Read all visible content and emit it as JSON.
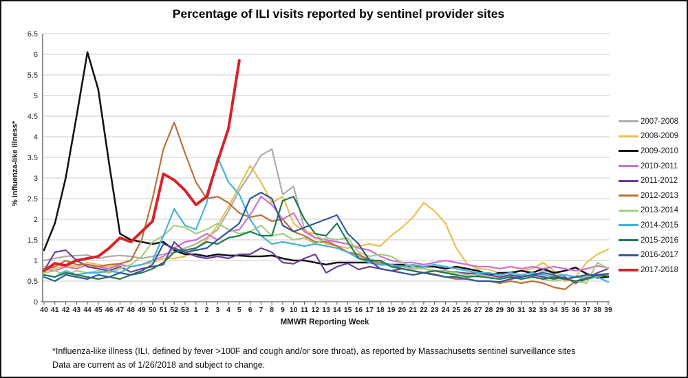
{
  "footnote": {
    "line1": "*Influenza-like illness (ILI, defined by fever >100F and cough and/or sore throat), as reported by Massachusetts sentinel surveillance sites",
    "line2": "Data are current as of 1/26/2018 and subject to change."
  },
  "chart_data": {
    "type": "line",
    "title": "Percentage of ILI visits reported by sentinel provider sites",
    "xlabel": "MMWR Reporting Week",
    "ylabel": "% Influenza-like Illness*",
    "ylim": [
      0,
      6.5
    ],
    "ytick_step": 0.5,
    "grid": true,
    "legend_position": "right",
    "axis_color": "#595959",
    "grid_color": "#c9c9c9",
    "categories": [
      "40",
      "41",
      "42",
      "43",
      "44",
      "45",
      "46",
      "47",
      "48",
      "49",
      "50",
      "51",
      "52",
      "53",
      "1",
      "2",
      "3",
      "4",
      "5",
      "6",
      "7",
      "8",
      "9",
      "10",
      "11",
      "12",
      "13",
      "14",
      "15",
      "16",
      "17",
      "18",
      "19",
      "20",
      "21",
      "22",
      "23",
      "24",
      "25",
      "26",
      "27",
      "28",
      "29",
      "30",
      "31",
      "32",
      "33",
      "34",
      "35",
      "36",
      "37",
      "38",
      "39"
    ],
    "series": [
      {
        "name": "2007-2008",
        "color": "#ababab",
        "stroke_width": 2.2,
        "values": [
          1.0,
          1.05,
          1.1,
          1.12,
          1.13,
          1.05,
          1.1,
          1.12,
          1.1,
          1.05,
          1.1,
          1.15,
          1.2,
          1.3,
          1.4,
          1.55,
          1.75,
          2.2,
          2.7,
          3.1,
          3.55,
          3.7,
          2.6,
          2.8,
          1.75,
          1.55,
          1.5,
          1.35,
          1.2,
          1.1,
          1.05,
          0.95,
          0.9,
          0.85,
          0.8,
          0.8,
          0.75,
          0.75,
          0.7,
          0.7,
          0.65,
          0.65,
          0.6,
          0.6,
          0.65,
          0.6,
          0.75,
          0.7,
          0.65,
          0.6,
          0.6,
          0.65,
          0.65
        ]
      },
      {
        "name": "2008-2009",
        "color": "#eabf4c",
        "stroke_width": 2.2,
        "values": [
          0.85,
          0.8,
          0.9,
          0.85,
          0.95,
          0.9,
          0.85,
          0.9,
          0.85,
          0.9,
          0.95,
          1.05,
          1.05,
          1.1,
          1.3,
          1.5,
          1.85,
          2.3,
          2.8,
          3.3,
          2.9,
          2.4,
          2.55,
          1.9,
          1.7,
          1.65,
          1.4,
          1.35,
          1.3,
          1.35,
          1.4,
          1.35,
          1.6,
          1.8,
          2.05,
          2.4,
          2.2,
          1.9,
          1.3,
          0.92,
          0.8,
          0.78,
          0.7,
          0.72,
          0.75,
          0.8,
          0.95,
          0.75,
          0.5,
          0.6,
          0.95,
          1.15,
          1.27
        ]
      },
      {
        "name": "2009-2010",
        "color": "#141414",
        "stroke_width": 2.6,
        "values": [
          1.25,
          1.9,
          3.0,
          4.5,
          6.05,
          5.15,
          3.35,
          1.65,
          1.5,
          1.45,
          1.4,
          1.45,
          1.25,
          1.15,
          1.15,
          1.1,
          1.15,
          1.12,
          1.12,
          1.1,
          1.1,
          1.12,
          1.05,
          1.0,
          1.0,
          0.95,
          0.9,
          0.95,
          0.95,
          0.95,
          0.95,
          0.9,
          0.9,
          0.9,
          0.85,
          0.85,
          0.85,
          0.8,
          0.85,
          0.8,
          0.75,
          0.65,
          0.7,
          0.7,
          0.75,
          0.7,
          0.8,
          0.7,
          0.75,
          0.83,
          0.68,
          0.58,
          0.6
        ]
      },
      {
        "name": "2010-2011",
        "color": "#cf6fd0",
        "stroke_width": 2.2,
        "values": [
          0.8,
          0.75,
          0.85,
          0.8,
          0.9,
          0.85,
          0.8,
          0.9,
          0.85,
          0.9,
          1.0,
          1.1,
          1.3,
          1.45,
          1.5,
          1.65,
          1.5,
          1.7,
          1.75,
          2.1,
          2.55,
          2.35,
          2.0,
          2.15,
          1.7,
          1.55,
          1.5,
          1.45,
          1.4,
          1.3,
          1.25,
          1.1,
          1.0,
          0.95,
          0.95,
          0.9,
          0.95,
          1.0,
          0.95,
          0.9,
          0.85,
          0.85,
          0.8,
          0.85,
          0.8,
          0.85,
          0.8,
          0.85,
          0.8,
          0.75,
          0.8,
          0.87,
          0.82
        ]
      },
      {
        "name": "2011-2012",
        "color": "#6b3e98",
        "stroke_width": 2.2,
        "values": [
          0.75,
          1.2,
          1.25,
          1.0,
          0.85,
          0.8,
          0.75,
          0.85,
          0.72,
          0.8,
          0.85,
          0.9,
          1.45,
          1.2,
          1.1,
          1.05,
          1.1,
          1.05,
          1.15,
          1.15,
          1.3,
          1.2,
          0.95,
          0.92,
          1.05,
          1.15,
          0.7,
          0.85,
          0.93,
          0.78,
          0.85,
          0.8,
          0.75,
          0.8,
          0.75,
          0.7,
          0.75,
          0.7,
          0.72,
          0.68,
          0.7,
          0.65,
          0.6,
          0.65,
          0.6,
          0.65,
          0.6,
          0.55,
          0.6,
          0.45,
          0.55,
          0.7,
          0.8
        ]
      },
      {
        "name": "2012-2013",
        "color": "#bd7036",
        "stroke_width": 2.2,
        "values": [
          0.8,
          0.85,
          1.0,
          0.9,
          0.9,
          0.85,
          0.9,
          0.92,
          1.0,
          1.5,
          2.5,
          3.7,
          4.35,
          3.6,
          2.9,
          2.5,
          2.55,
          2.4,
          2.15,
          2.05,
          2.1,
          1.95,
          2.0,
          1.7,
          1.6,
          1.45,
          1.45,
          1.35,
          1.2,
          1.15,
          1.0,
          0.95,
          0.9,
          0.8,
          0.75,
          0.7,
          0.67,
          0.6,
          0.55,
          0.55,
          0.5,
          0.5,
          0.45,
          0.5,
          0.45,
          0.5,
          0.45,
          0.35,
          0.3,
          0.5,
          0.58,
          0.62,
          0.68
        ]
      },
      {
        "name": "2013-2014",
        "color": "#a5cf7c",
        "stroke_width": 2.2,
        "values": [
          0.7,
          0.75,
          0.65,
          0.75,
          0.7,
          0.75,
          0.7,
          0.8,
          0.9,
          1.1,
          1.45,
          1.6,
          1.85,
          1.8,
          1.65,
          1.75,
          1.9,
          1.75,
          1.65,
          1.7,
          1.85,
          1.6,
          1.65,
          1.5,
          1.55,
          1.4,
          1.55,
          1.5,
          1.55,
          1.2,
          1.1,
          1.15,
          1.1,
          0.95,
          0.85,
          0.8,
          0.75,
          0.7,
          0.7,
          0.65,
          0.6,
          0.6,
          0.55,
          0.6,
          0.55,
          0.6,
          0.55,
          0.5,
          0.55,
          0.5,
          0.45,
          0.95,
          0.8
        ]
      },
      {
        "name": "2014-2015",
        "color": "#41b4d8",
        "stroke_width": 2.2,
        "values": [
          0.65,
          0.6,
          0.75,
          0.65,
          0.7,
          0.7,
          0.75,
          0.7,
          0.85,
          0.9,
          1.0,
          1.6,
          2.25,
          1.85,
          1.75,
          2.4,
          3.5,
          2.9,
          2.6,
          2.0,
          1.6,
          1.4,
          1.45,
          1.4,
          1.35,
          1.4,
          1.35,
          1.3,
          1.2,
          1.05,
          0.95,
          0.9,
          0.9,
          0.85,
          0.9,
          0.85,
          0.9,
          0.85,
          0.8,
          0.75,
          0.7,
          0.7,
          0.65,
          0.7,
          0.65,
          0.7,
          0.65,
          0.6,
          0.65,
          0.6,
          0.55,
          0.6,
          0.48
        ]
      },
      {
        "name": "2015-2016",
        "color": "#1f7a4d",
        "stroke_width": 2.2,
        "values": [
          0.65,
          0.6,
          0.7,
          0.65,
          0.6,
          0.55,
          0.6,
          0.55,
          0.65,
          0.7,
          0.8,
          0.95,
          1.2,
          1.25,
          1.3,
          1.45,
          1.4,
          1.55,
          1.6,
          1.7,
          1.6,
          1.6,
          2.45,
          2.55,
          2.0,
          1.65,
          1.6,
          1.9,
          1.45,
          1.05,
          1.0,
          1.0,
          0.85,
          0.8,
          0.75,
          0.7,
          0.75,
          0.7,
          0.65,
          0.6,
          0.62,
          0.58,
          0.55,
          0.6,
          0.55,
          0.6,
          0.55,
          0.6,
          0.55,
          0.5,
          0.55,
          0.65,
          0.62
        ]
      },
      {
        "name": "2016-2017",
        "color": "#30589c",
        "stroke_width": 2.2,
        "values": [
          0.6,
          0.5,
          0.65,
          0.6,
          0.55,
          0.65,
          0.6,
          0.7,
          0.65,
          0.75,
          0.9,
          1.4,
          1.3,
          1.2,
          1.25,
          1.3,
          1.5,
          1.7,
          1.9,
          2.5,
          2.65,
          2.5,
          1.85,
          1.7,
          1.8,
          1.9,
          2.0,
          2.1,
          1.65,
          1.4,
          1.0,
          0.8,
          0.75,
          0.7,
          0.65,
          0.7,
          0.65,
          0.6,
          0.6,
          0.55,
          0.5,
          0.5,
          0.48,
          0.55,
          0.6,
          0.65,
          0.7,
          0.65,
          0.55,
          0.6,
          0.65,
          0.65,
          0.68
        ]
      },
      {
        "name": "2017-2018",
        "color": "#d8232b",
        "stroke_width": 4,
        "values": [
          0.75,
          0.93,
          0.88,
          1.0,
          1.05,
          1.1,
          1.3,
          1.55,
          1.45,
          1.7,
          1.95,
          3.1,
          2.95,
          2.7,
          2.35,
          2.55,
          3.4,
          4.2,
          5.85,
          null,
          null,
          null,
          null,
          null,
          null,
          null,
          null,
          null,
          null,
          null,
          null,
          null,
          null,
          null,
          null,
          null,
          null,
          null,
          null,
          null,
          null,
          null,
          null,
          null,
          null,
          null,
          null,
          null,
          null,
          null,
          null,
          null,
          null
        ]
      }
    ]
  }
}
